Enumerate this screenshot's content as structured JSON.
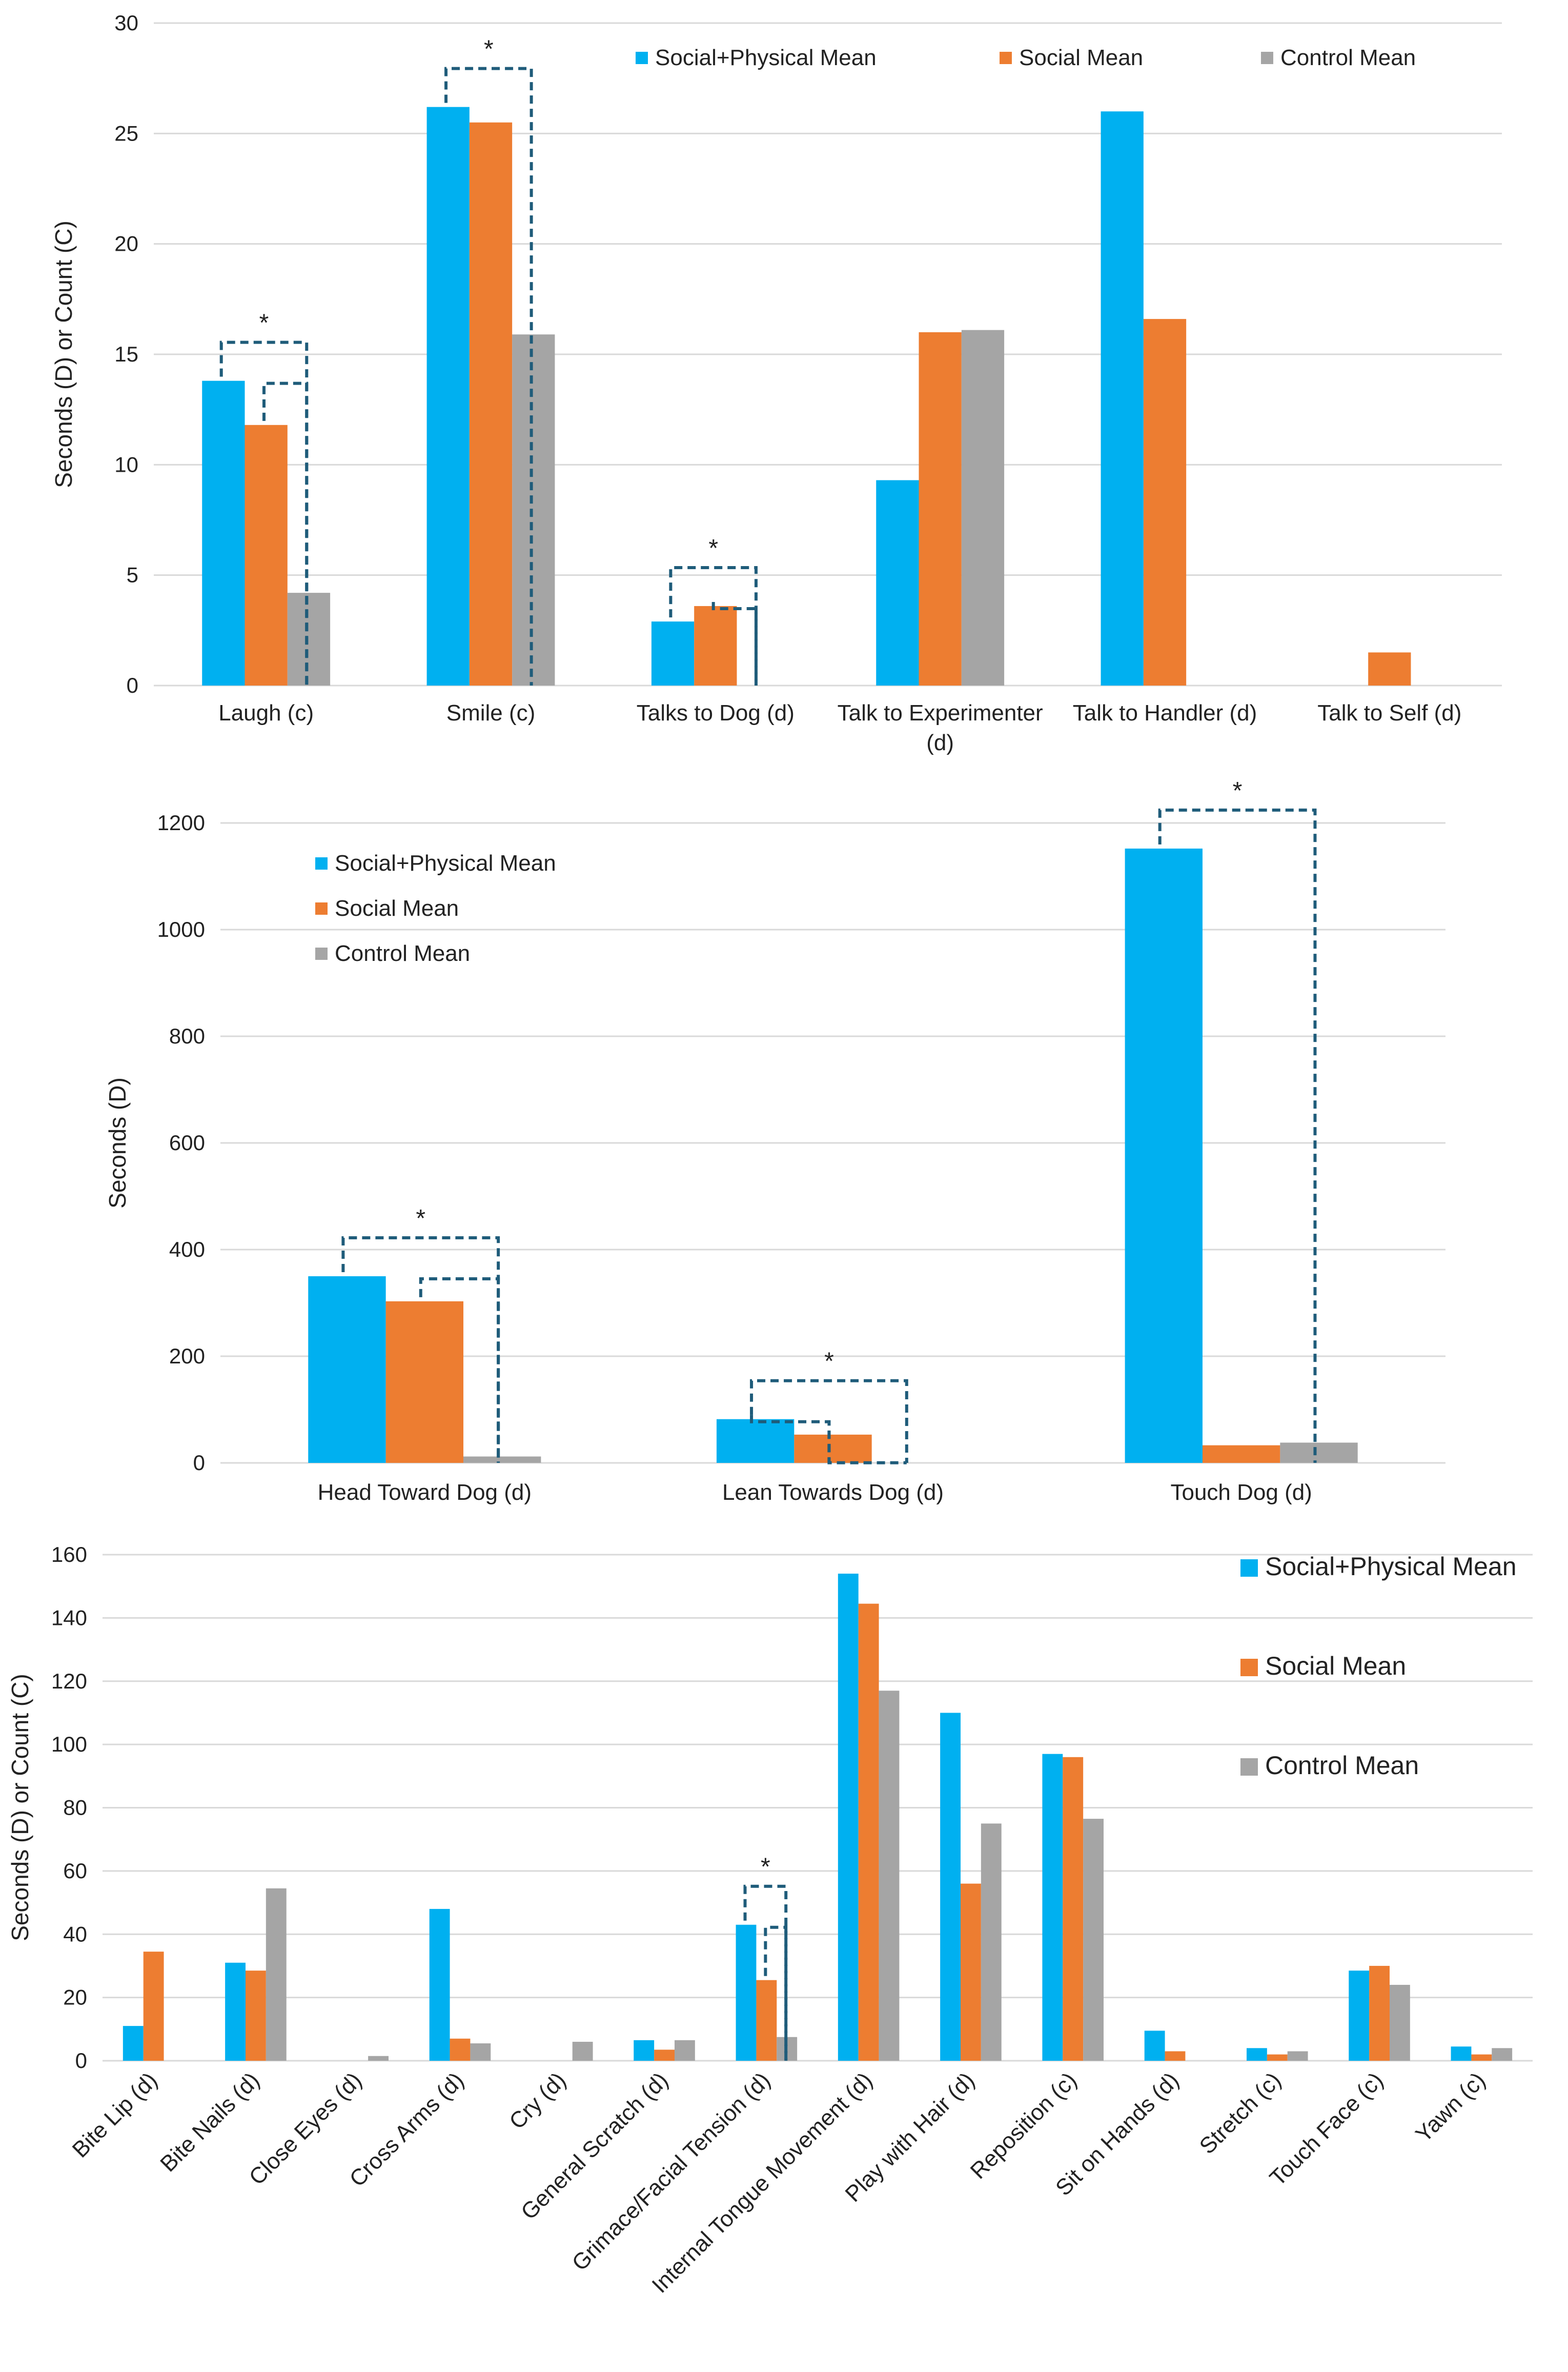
{
  "colors": {
    "social_physical": "#00B0F0",
    "social": "#ED7D31",
    "control": "#A5A5A5",
    "bracket": "#1F5C7A",
    "grid": "#D9D9D9"
  },
  "chart_data": [
    {
      "type": "bar",
      "ylabel": "Seconds (D) or Count (C)",
      "ylim": [
        0,
        30
      ],
      "yticks": [
        0,
        5,
        10,
        15,
        20,
        25,
        30
      ],
      "legend_position": "top",
      "categories": [
        "Laugh (c)",
        "Smile (c)",
        "Talks to Dog (d)",
        "Talk to Experimenter (d)",
        "Talk to Handler (d)",
        "Talk to Self (d)"
      ],
      "series": [
        {
          "name": "Social+Physical Mean",
          "color_key": "social_physical",
          "values": [
            13.8,
            26.2,
            2.9,
            9.3,
            26.0,
            0
          ]
        },
        {
          "name": "Social Mean",
          "color_key": "social",
          "values": [
            11.8,
            25.5,
            3.6,
            16.0,
            16.6,
            1.5
          ]
        },
        {
          "name": "Control Mean",
          "color_key": "control",
          "values": [
            4.2,
            15.9,
            0,
            16.1,
            0,
            0
          ]
        }
      ],
      "significance": [
        {
          "category": 0,
          "label": "*",
          "brackets": [
            [
              0,
              2
            ],
            [
              1,
              2
            ]
          ]
        },
        {
          "category": 1,
          "label": "*",
          "brackets": [
            [
              0,
              2
            ]
          ]
        },
        {
          "category": 2,
          "label": "*",
          "brackets": [
            [
              0,
              2
            ],
            [
              1,
              2
            ]
          ]
        }
      ]
    },
    {
      "type": "bar",
      "ylabel": "Seconds (D)",
      "ylim": [
        0,
        1200
      ],
      "yticks": [
        0,
        200,
        400,
        600,
        800,
        1000,
        1200
      ],
      "legend_position": "top-left",
      "categories": [
        "Head Toward Dog (d)",
        "Lean Towards Dog (d)",
        "Touch Dog (d)"
      ],
      "series": [
        {
          "name": "Social+Physical Mean",
          "color_key": "social_physical",
          "values": [
            350,
            82,
            1152
          ]
        },
        {
          "name": "Social Mean",
          "color_key": "social",
          "values": [
            303,
            53,
            33
          ]
        },
        {
          "name": "Control Mean",
          "color_key": "control",
          "values": [
            12,
            0,
            38
          ]
        }
      ],
      "significance": [
        {
          "category": 0,
          "label": "*",
          "brackets": [
            [
              0,
              2
            ],
            [
              1,
              2
            ]
          ]
        },
        {
          "category": 1,
          "label": "*",
          "brackets": [
            [
              0,
              2
            ],
            [
              0,
              1
            ],
            [
              1,
              2
            ]
          ]
        },
        {
          "category": 2,
          "label": "*",
          "brackets": [
            [
              0,
              2
            ]
          ]
        }
      ]
    },
    {
      "type": "bar",
      "ylabel": "Seconds (D) or Count (C)",
      "ylim": [
        0,
        160
      ],
      "yticks": [
        0,
        20,
        40,
        60,
        80,
        100,
        120,
        140,
        160
      ],
      "legend_position": "right",
      "categories": [
        "Bite Lip (d)",
        "Bite Nails (d)",
        "Close Eyes (d)",
        "Cross Arms (d)",
        "Cry (d)",
        "General Scratch (d)",
        "Grimace/Facial Tension (d)",
        "Internal Tongue Movement (d)",
        "Play with Hair (d)",
        "Reposition (c)",
        "Sit on Hands (d)",
        "Stretch (c)",
        "Touch Face (c)",
        "Yawn (c)"
      ],
      "series": [
        {
          "name": "Social+Physical Mean",
          "color_key": "social_physical",
          "values": [
            11,
            31,
            0,
            48,
            0,
            6.5,
            43,
            154,
            110,
            97,
            9.5,
            4,
            28.5,
            4.5
          ]
        },
        {
          "name": "Social Mean",
          "color_key": "social",
          "values": [
            34.5,
            28.5,
            0,
            7,
            0,
            3.5,
            25.5,
            144.5,
            56,
            96,
            3,
            2,
            30,
            2
          ]
        },
        {
          "name": "Control Mean",
          "color_key": "control",
          "values": [
            0,
            54.5,
            1.5,
            5.5,
            6,
            6.5,
            7.5,
            117,
            75,
            76.5,
            0,
            3,
            24,
            4
          ]
        }
      ],
      "significance": [
        {
          "category": 6,
          "label": "*",
          "brackets": [
            [
              0,
              2
            ],
            [
              1,
              2
            ]
          ]
        }
      ]
    }
  ]
}
